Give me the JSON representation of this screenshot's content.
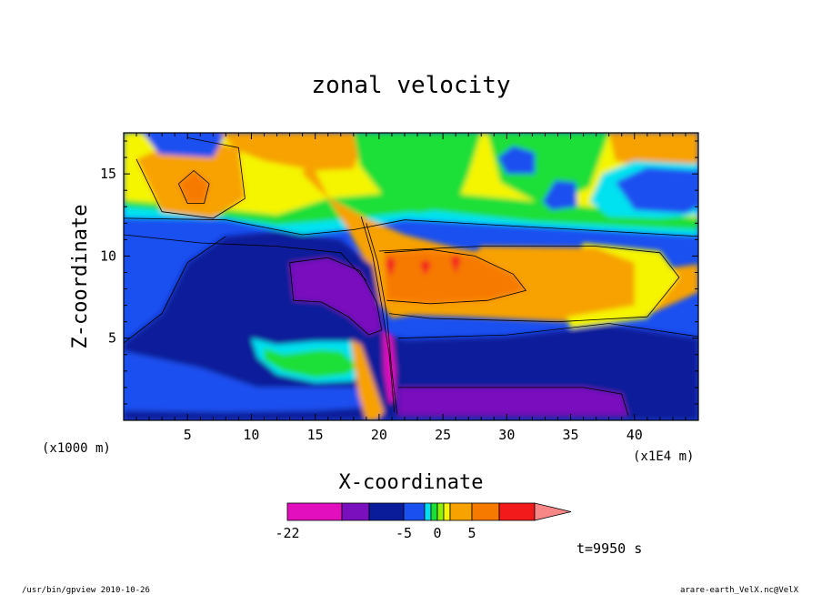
{
  "chart_data": {
    "type": "heatmap",
    "title": "zonal velocity",
    "xlabel": "X-coordinate",
    "ylabel": "Z-coordinate",
    "x_unit": "(x1E4 m)",
    "y_unit": "(x1000 m)",
    "xlim": [
      0,
      45
    ],
    "ylim": [
      0,
      17.5
    ],
    "x_ticks": [
      "5",
      "10",
      "15",
      "20",
      "25",
      "30",
      "35",
      "40"
    ],
    "y_ticks": [
      "5",
      "10",
      "15"
    ],
    "colorbar": {
      "tick_labels": [
        "-22",
        "-5",
        "0",
        "5"
      ],
      "colors": [
        "#e10fbe",
        "#7a0fbd",
        "#0a1c9a",
        "#1a4ff0",
        "#00e2f0",
        "#1adf37",
        "#8ff000",
        "#f5f500",
        "#f7a200",
        "#f77a00",
        "#f21a1a",
        "#f78787"
      ]
    },
    "time_label": "t=9950 s",
    "footer_left": "/usr/bin/gpview   2010-10-26",
    "footer_right": "arare-earth_VelX.nc@VelX",
    "regions": [
      {
        "level": "strong-westward",
        "color": "#e10fbe",
        "x": [
          20.4,
          21.2
        ],
        "z": [
          1.5,
          5.5
        ]
      },
      {
        "level": "westward",
        "color": "#7a0fbd",
        "x": [
          13,
          20
        ],
        "z": [
          5.5,
          9.5
        ]
      },
      {
        "level": "westward",
        "color": "#7a0fbd",
        "x": [
          21.5,
          39
        ],
        "z": [
          0.3,
          2.0
        ]
      },
      {
        "level": "weak-westward",
        "color": "#0a1c9a",
        "x": [
          0,
          45
        ],
        "z": [
          0,
          11
        ]
      },
      {
        "level": "eastward",
        "color": "#f7a200",
        "x": [
          20,
          41
        ],
        "z": [
          6.3,
          11
        ]
      },
      {
        "level": "strong-eastward",
        "color": "#f77a00",
        "x": [
          20.5,
          31
        ],
        "z": [
          7.3,
          10.3
        ]
      },
      {
        "level": "eastward",
        "color": "#f7a200",
        "x": [
          3.5,
          7
        ],
        "z": [
          12,
          15.5
        ]
      }
    ]
  }
}
